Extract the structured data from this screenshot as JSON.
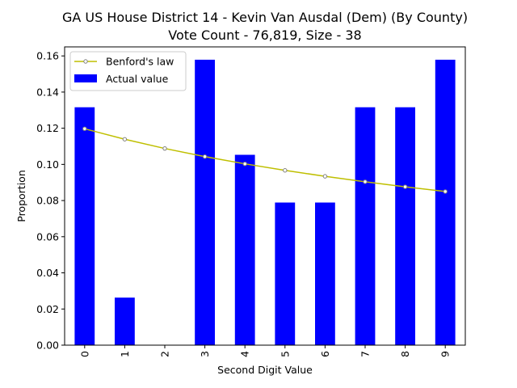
{
  "chart_data": {
    "type": "bar",
    "title_line1": "GA US House District 14 - Kevin Van Ausdal (Dem) (By County)",
    "title_line2": "Vote Count - 76,819, Size - 38",
    "xlabel": "Second Digit Value",
    "ylabel": "Proportion",
    "categories": [
      "0",
      "1",
      "2",
      "3",
      "4",
      "5",
      "6",
      "7",
      "8",
      "9"
    ],
    "ylim": [
      0,
      0.165
    ],
    "yticks": [
      "0.00",
      "0.02",
      "0.04",
      "0.06",
      "0.08",
      "0.10",
      "0.12",
      "0.14",
      "0.16"
    ],
    "grid": false,
    "legend_position": "top-left",
    "series": [
      {
        "name": "Actual value",
        "kind": "bar",
        "color": "#0000ff",
        "values": [
          0.1316,
          0.0263,
          0.0,
          0.1579,
          0.1053,
          0.0789,
          0.0789,
          0.1316,
          0.1316,
          0.1579
        ]
      },
      {
        "name": "Benford's law",
        "kind": "line",
        "color": "#bfbf00",
        "values": [
          0.1197,
          0.1139,
          0.1088,
          0.1043,
          0.1003,
          0.0967,
          0.0934,
          0.0904,
          0.0876,
          0.085
        ]
      }
    ]
  }
}
